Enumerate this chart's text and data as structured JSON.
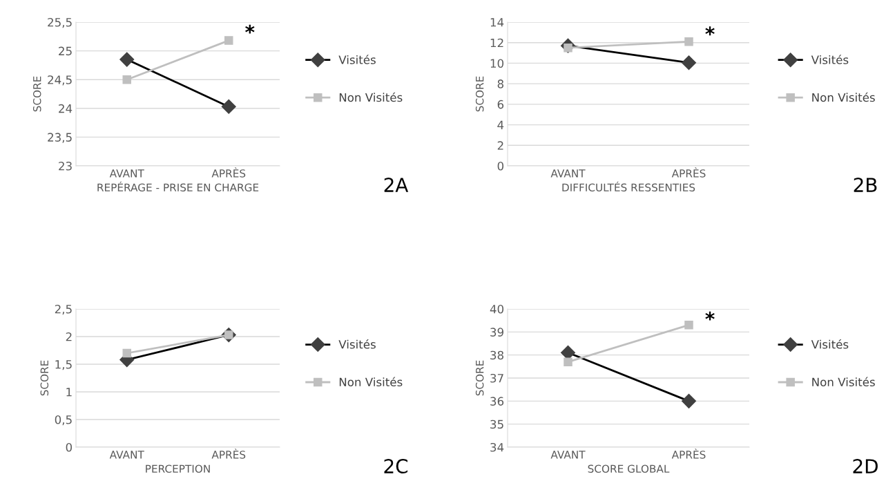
{
  "chart_data": [
    {
      "type": "line",
      "xlabel": "REPÉRAGE - PRISE EN CHARGE",
      "ylabel": "SCORE",
      "categories": [
        "AVANT",
        "APRÈS"
      ],
      "series": [
        {
          "name": "Visités",
          "color": "#000000",
          "marker": "diamond",
          "values": [
            24.85,
            24.03
          ]
        },
        {
          "name": "Non Visités",
          "color": "#bfbfbf",
          "marker": "square",
          "values": [
            24.5,
            25.18
          ]
        }
      ],
      "ylim": [
        23,
        25.5
      ],
      "yticks": [
        23,
        {
          "value": 23.5,
          "label": "23,5"
        },
        24,
        {
          "value": 24.5,
          "label": "24,5"
        },
        25,
        {
          "value": 25.5,
          "label": "25,5"
        }
      ],
      "grid": "y",
      "legend": "right",
      "annotations": [
        {
          "text": "*",
          "x": "APRÈS",
          "y": 25.3
        },
        "2A"
      ]
    },
    {
      "type": "line",
      "xlabel": "DIFFICULTÉS RESSENTIES",
      "ylabel": "SCORE",
      "categories": [
        "AVANT",
        "APRÈS"
      ],
      "series": [
        {
          "name": "Visités",
          "color": "#000000",
          "marker": "diamond",
          "values": [
            11.7,
            10.05
          ]
        },
        {
          "name": "Non Visités",
          "color": "#bfbfbf",
          "marker": "square",
          "values": [
            11.5,
            12.1
          ]
        }
      ],
      "ylim": [
        0,
        14
      ],
      "yticks": [
        0,
        2,
        4,
        6,
        8,
        10,
        12,
        14
      ],
      "grid": "y",
      "legend": "right",
      "annotations": [
        {
          "text": "*",
          "x": "APRÈS",
          "y": 12.7
        },
        "2B"
      ]
    },
    {
      "type": "line",
      "xlabel": "PERCEPTION",
      "ylabel": "SCORE",
      "categories": [
        "AVANT",
        "APRÈS"
      ],
      "series": [
        {
          "name": "Visités",
          "color": "#000000",
          "marker": "diamond",
          "values": [
            1.58,
            2.03
          ]
        },
        {
          "name": "Non Visités",
          "color": "#bfbfbf",
          "marker": "square",
          "values": [
            1.7,
            2.03
          ]
        }
      ],
      "ylim": [
        0,
        2.5
      ],
      "yticks": [
        0,
        {
          "value": 0.5,
          "label": "0,5"
        },
        1,
        {
          "value": 1.5,
          "label": "1,5"
        },
        2,
        {
          "value": 2.5,
          "label": "2,5"
        }
      ],
      "grid": "y",
      "legend": "right",
      "annotations": [
        "2C"
      ]
    },
    {
      "type": "line",
      "xlabel": "SCORE GLOBAL",
      "ylabel": "SCORE",
      "categories": [
        "AVANT",
        "APRÈS"
      ],
      "series": [
        {
          "name": "Visités",
          "color": "#000000",
          "marker": "diamond",
          "values": [
            38.1,
            36.0
          ]
        },
        {
          "name": "Non Visités",
          "color": "#bfbfbf",
          "marker": "square",
          "values": [
            37.7,
            39.3
          ]
        }
      ],
      "ylim": [
        34,
        40
      ],
      "yticks": [
        34,
        35,
        36,
        37,
        38,
        39,
        40
      ],
      "grid": "y",
      "legend": "right",
      "annotations": [
        {
          "text": "*",
          "x": "APRÈS",
          "y": 39.5
        },
        "2D"
      ]
    }
  ]
}
